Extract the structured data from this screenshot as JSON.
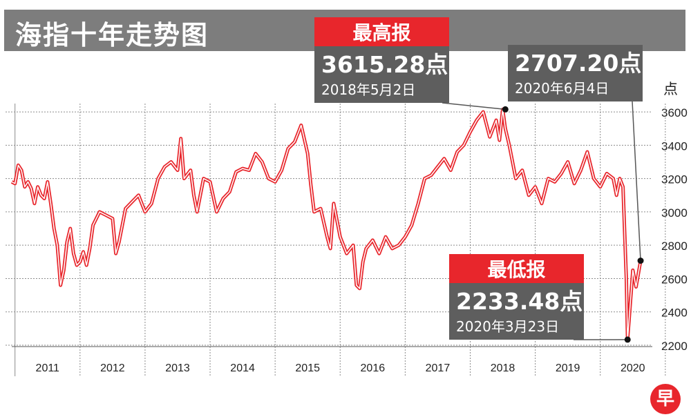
{
  "title": "海指十年走势图",
  "chart_data": {
    "type": "line",
    "title": "海指十年走势图",
    "ylabel": "点",
    "ylim": [
      2200,
      3650
    ],
    "y_ticks": [
      2200,
      2400,
      2600,
      2800,
      3000,
      3200,
      3400,
      3600
    ],
    "x_range": [
      2010.75,
      2020.6
    ],
    "x_tick_labels": [
      "2011",
      "2012",
      "2013",
      "2014",
      "2015",
      "2016",
      "2017",
      "2018",
      "2019",
      "2020"
    ],
    "grid": true,
    "series": [
      {
        "color": "#e8262c",
        "x": [
          2010.75,
          2010.8,
          2010.85,
          2010.9,
          2010.95,
          2011.0,
          2011.05,
          2011.1,
          2011.15,
          2011.2,
          2011.25,
          2011.3,
          2011.35,
          2011.4,
          2011.45,
          2011.5,
          2011.55,
          2011.6,
          2011.65,
          2011.7,
          2011.75,
          2011.8,
          2011.85,
          2011.9,
          2011.95,
          2012.0,
          2012.1,
          2012.2,
          2012.3,
          2012.35,
          2012.4,
          2012.5,
          2012.6,
          2012.7,
          2012.8,
          2012.9,
          2013.0,
          2013.1,
          2013.2,
          2013.3,
          2013.35,
          2013.4,
          2013.5,
          2013.55,
          2013.6,
          2013.7,
          2013.8,
          2013.9,
          2014.0,
          2014.1,
          2014.2,
          2014.3,
          2014.4,
          2014.5,
          2014.6,
          2014.7,
          2014.8,
          2014.9,
          2015.0,
          2015.1,
          2015.2,
          2015.3,
          2015.35,
          2015.4,
          2015.5,
          2015.6,
          2015.65,
          2015.7,
          2015.8,
          2015.9,
          2016.0,
          2016.05,
          2016.1,
          2016.15,
          2016.2,
          2016.3,
          2016.4,
          2016.5,
          2016.6,
          2016.7,
          2016.8,
          2016.9,
          2017.0,
          2017.1,
          2017.2,
          2017.3,
          2017.4,
          2017.5,
          2017.6,
          2017.7,
          2017.8,
          2017.9,
          2018.0,
          2018.1,
          2018.2,
          2018.25,
          2018.3,
          2018.34,
          2018.4,
          2018.5,
          2018.6,
          2018.7,
          2018.8,
          2018.9,
          2019.0,
          2019.1,
          2019.2,
          2019.3,
          2019.4,
          2019.5,
          2019.6,
          2019.7,
          2019.8,
          2019.9,
          2020.0,
          2020.05,
          2020.1,
          2020.15,
          2020.2,
          2020.22,
          2020.3,
          2020.35,
          2020.42
        ],
        "y": [
          3180,
          3170,
          3280,
          3250,
          3150,
          3180,
          3140,
          3050,
          3150,
          3100,
          3080,
          3180,
          3050,
          2900,
          2800,
          2560,
          2650,
          2820,
          2900,
          2750,
          2680,
          2700,
          2760,
          2680,
          2780,
          2920,
          3000,
          2980,
          2960,
          2750,
          2820,
          3020,
          3060,
          3100,
          3000,
          3050,
          3200,
          3270,
          3300,
          3250,
          3440,
          3200,
          3250,
          3100,
          3000,
          3200,
          3180,
          3000,
          3080,
          3120,
          3240,
          3260,
          3250,
          3350,
          3300,
          3200,
          3180,
          3250,
          3380,
          3420,
          3520,
          3350,
          3160,
          3000,
          3020,
          2850,
          2780,
          3050,
          2850,
          2750,
          2800,
          2560,
          2540,
          2700,
          2780,
          2830,
          2750,
          2850,
          2780,
          2800,
          2850,
          2920,
          3050,
          3200,
          3220,
          3270,
          3320,
          3250,
          3360,
          3400,
          3480,
          3550,
          3600,
          3450,
          3550,
          3430,
          3615,
          3500,
          3400,
          3200,
          3250,
          3100,
          3150,
          3050,
          3200,
          3180,
          3230,
          3300,
          3170,
          3250,
          3360,
          3200,
          3150,
          3230,
          3200,
          3100,
          3200,
          3150,
          2600,
          2233,
          2650,
          2550,
          2707
        ]
      }
    ],
    "annotations": [
      {
        "label": "最高报",
        "value": "3615.28点",
        "date": "2018年5月2日",
        "x": 2018.34,
        "y": 3615.28
      },
      {
        "label": "",
        "value": "2707.20点",
        "date": "2020年6月4日",
        "x": 2020.42,
        "y": 2707.2
      },
      {
        "label": "最低报",
        "value": "2233.48点",
        "date": "2020年3月23日",
        "x": 2020.22,
        "y": 2233.48
      }
    ]
  },
  "logo_text": "早"
}
